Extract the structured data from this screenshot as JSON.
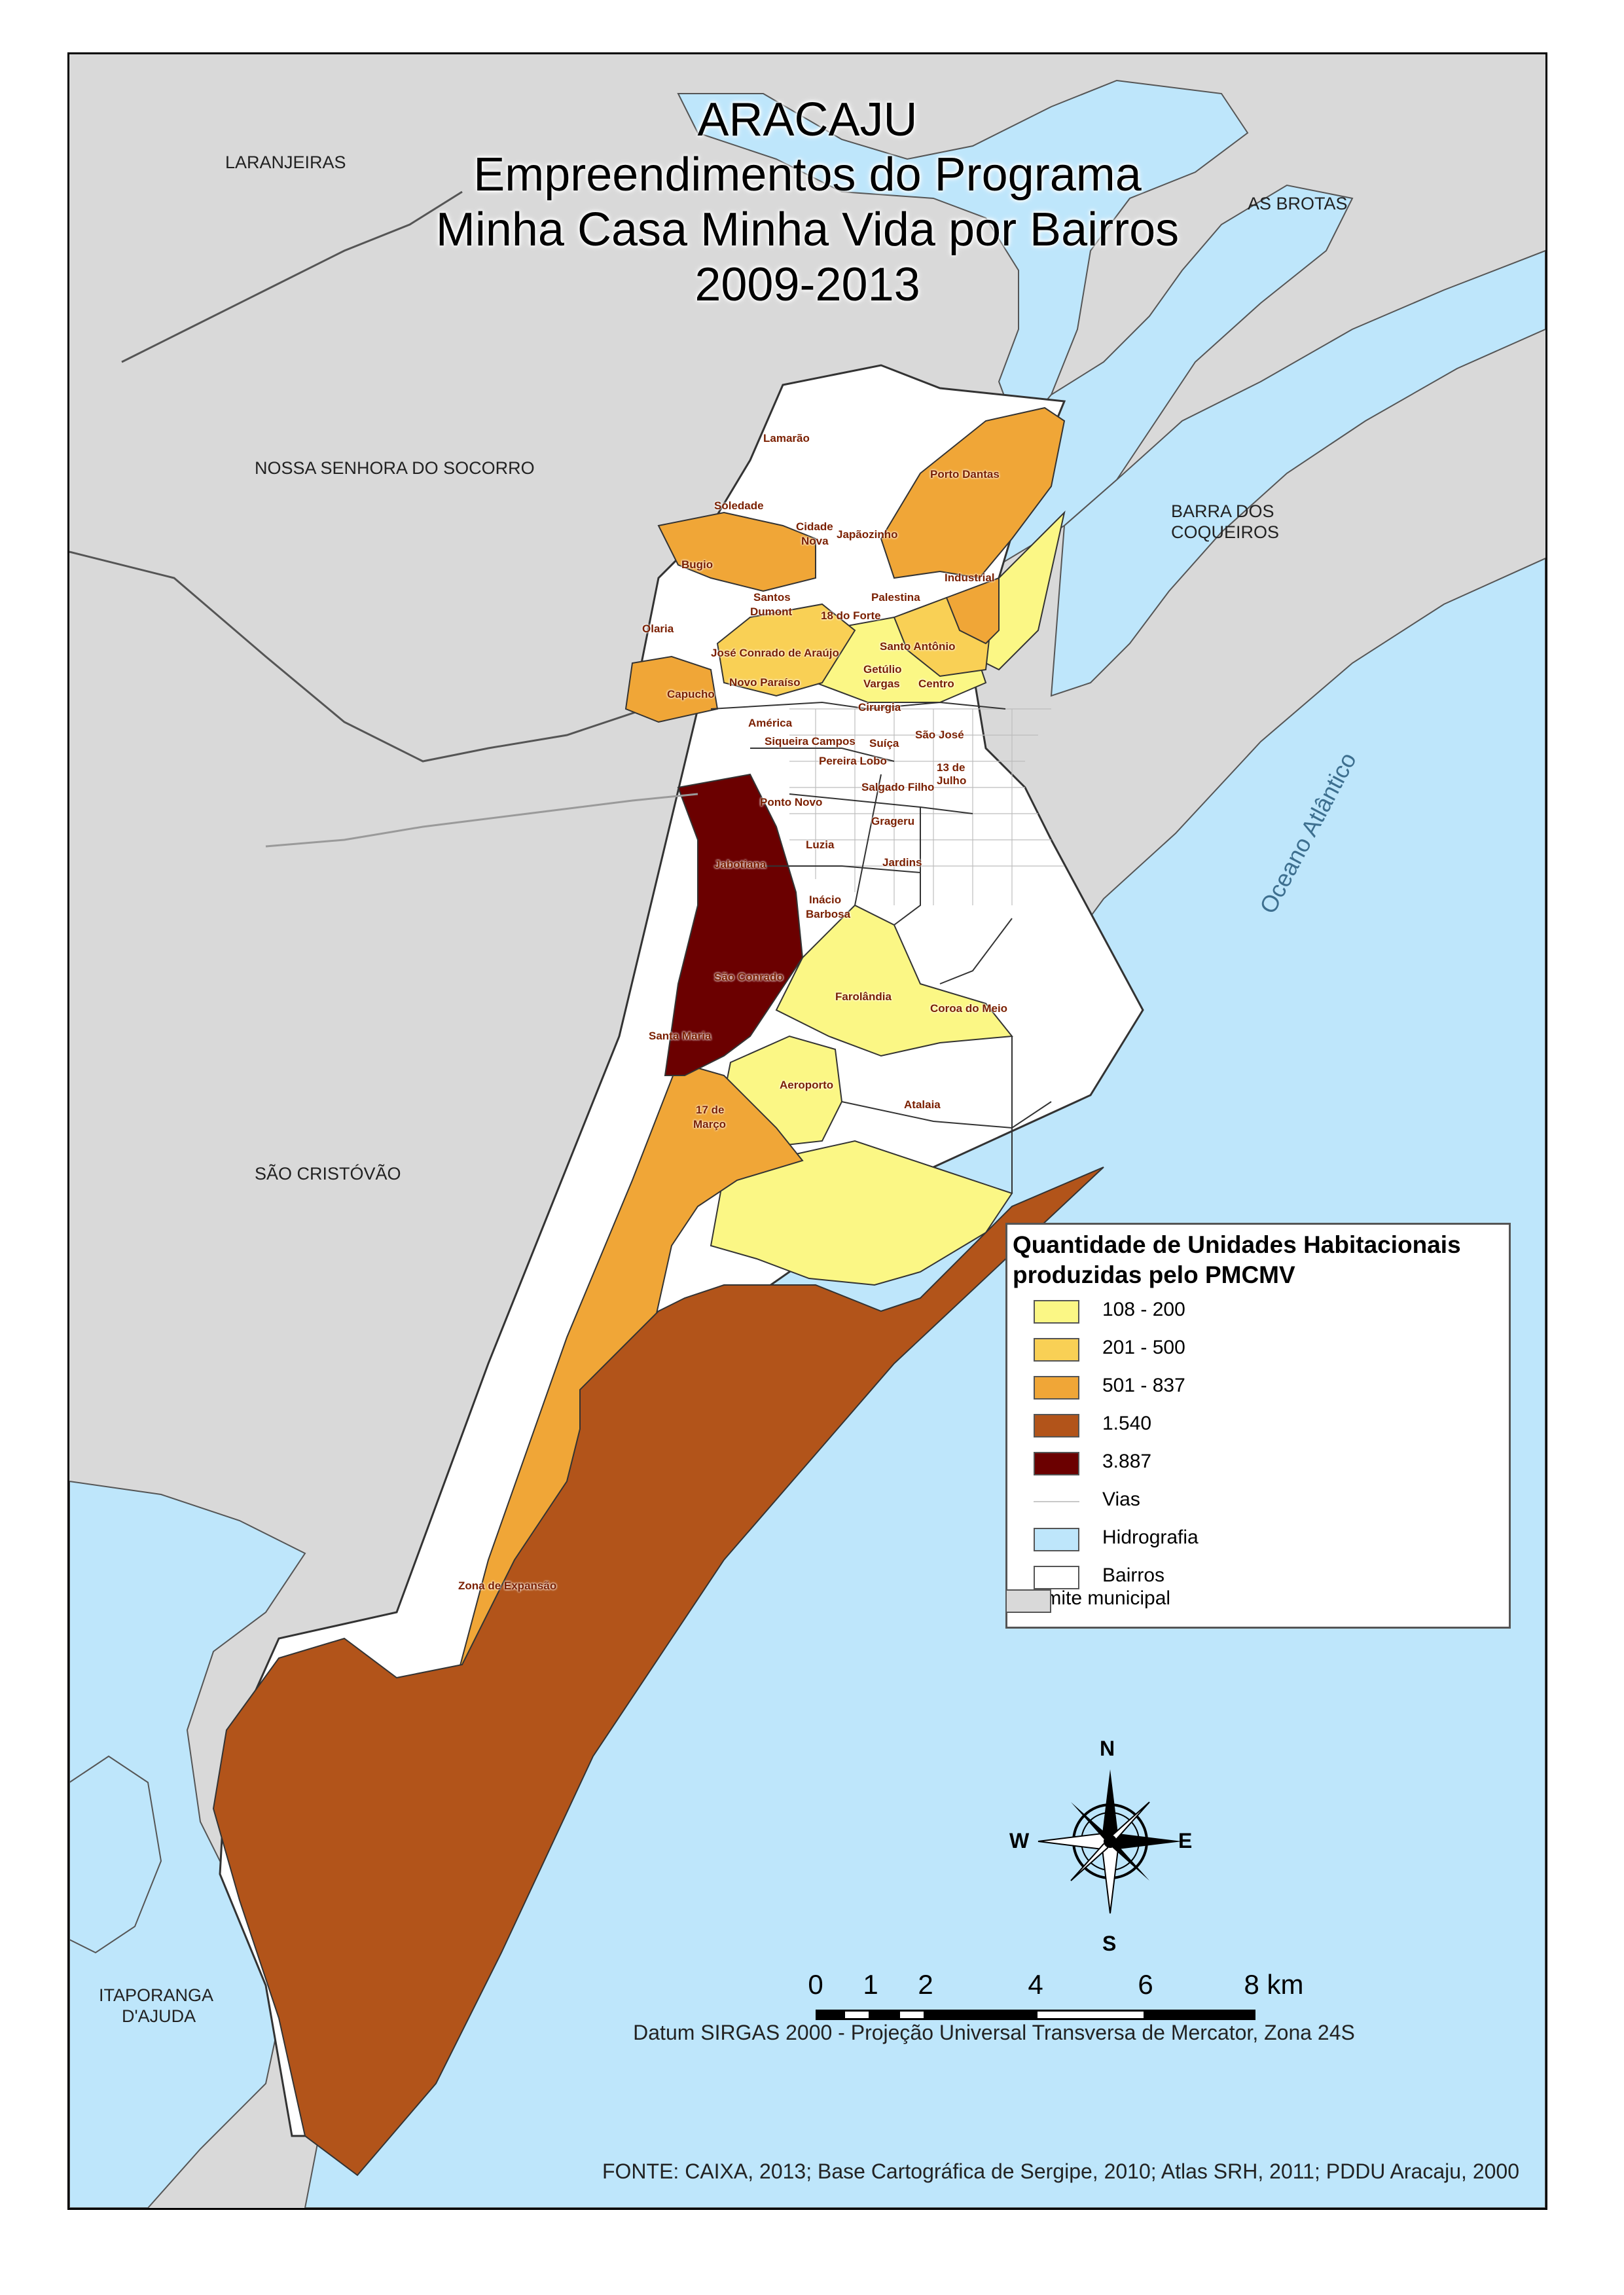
{
  "title": {
    "line1": "ARACAJU",
    "line2": "Empreendimentos do Programa",
    "line3": "Minha Casa Minha Vida por Bairros",
    "line4": "2009-2013"
  },
  "places": {
    "laranjeiras": "LARANJEIRAS",
    "das_brotas": "AS BROTAS",
    "socorro": "NOSSA SENHORA DO SOCORRO",
    "barra_1": "BARRA DOS",
    "barra_2": "COQUEIROS",
    "sao_cristovao": "SÃO CRISTÓVÃO",
    "itaporanga_1": "ITAPORANGA",
    "itaporanga_2": "D'AJUDA",
    "ocean": "Oceano Atlântico"
  },
  "neighborhoods": {
    "lamarao": "Lamarão",
    "soledade": "Soledade",
    "porto_dantas": "Porto Dantas",
    "cidade_nova_1": "Cidade",
    "cidade_nova_2": "Nova",
    "japaozinho": "Japãozinho",
    "bugio": "Bugio",
    "industrial": "Industrial",
    "santos_dumont_1": "Santos",
    "santos_dumont_2": "Dumont",
    "palestina": "Palestina",
    "dezoito_forte": "18 do Forte",
    "olaria": "Olaria",
    "santo_antonio": "Santo Antônio",
    "jose_conrado": "José Conrado de Araújo",
    "novo_paraiso": "Novo Paraíso",
    "getulio_1": "Getúlio",
    "getulio_2": "Vargas",
    "capucho": "Capucho",
    "centro": "Centro",
    "cirurgia": "Cirurgia",
    "america": "América",
    "siqueira": "Siqueira Campos",
    "sao_jose": "São José",
    "suica": "Suíça",
    "pereira_lobo": "Pereira Lobo",
    "treze_julho_1": "13 de",
    "treze_julho_2": "Julho",
    "salgado": "Salgado Filho",
    "ponto_novo": "Ponto Novo",
    "grageru": "Grageru",
    "luzia": "Luzia",
    "jardins": "Jardins",
    "jabotiana": "Jabotiana",
    "inacio_1": "Inácio",
    "inacio_2": "Barbosa",
    "sao_conrado": "São Conrado",
    "farolandia": "Farolândia",
    "coroa": "Coroa do Meio",
    "santa_maria": "Santa Maria",
    "aeroporto": "Aeroporto",
    "dezessete_1": "17 de",
    "dezessete_2": "Março",
    "atalaia": "Atalaia",
    "zona": "Zona de Expansão"
  },
  "legend": {
    "title_line1": "Quantidade de Unidades Habitacionais",
    "title_line2": "produzidas pelo PMCMV",
    "classes": [
      {
        "label": "108 - 200",
        "color": "#fbf785"
      },
      {
        "label": "201 - 500",
        "color": "#f9d055"
      },
      {
        "label": "501 - 837",
        "color": "#f0a637"
      },
      {
        "label": "1.540",
        "color": "#b2541a"
      },
      {
        "label": "3.887",
        "color": "#6b0000"
      }
    ],
    "vias": "Vias",
    "hidrografia": "Hidrografia",
    "hidrografia_color": "#bee6fb",
    "bairros": "Bairros",
    "limite": "Limite municipal",
    "limite_color": "#d9d9d9"
  },
  "compass": {
    "n": "N",
    "s": "S",
    "e": "E",
    "w": "W"
  },
  "scale": {
    "ticks": [
      "0",
      "1",
      "2",
      "4",
      "6",
      "8 km"
    ]
  },
  "datum": "Datum SIRGAS 2000 - Projeção Universal Transversa de Mercator, Zona 24S",
  "source": "FONTE: CAIXA, 2013; Base Cartográfica de Sergipe, 2010; Atlas SRH, 2011; PDDU Aracaju, 2000"
}
